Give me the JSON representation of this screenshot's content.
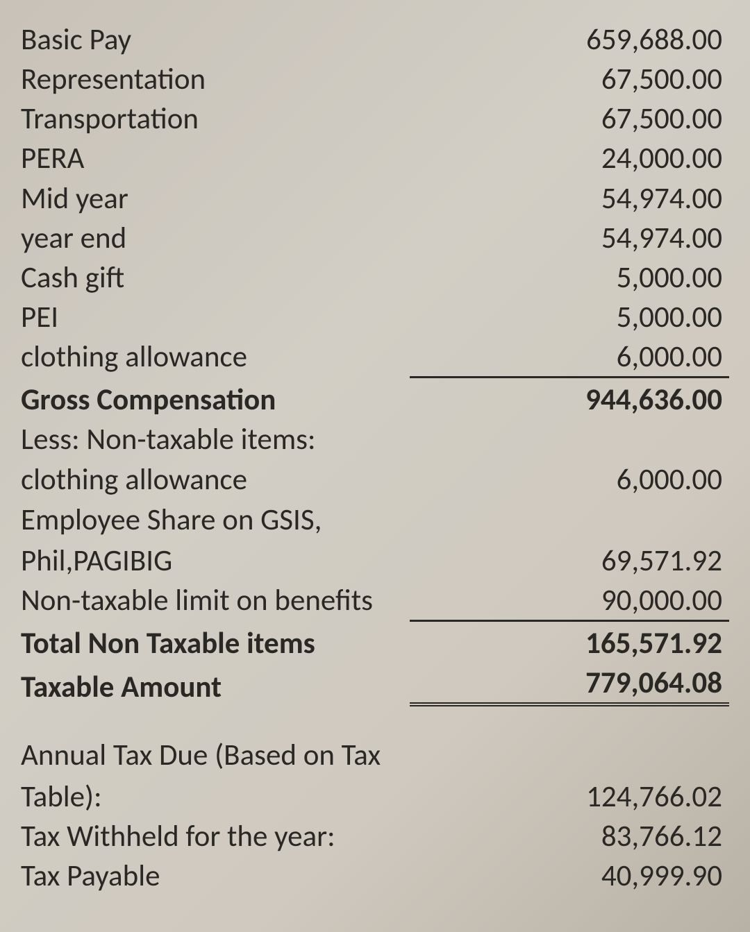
{
  "rows": {
    "basic_pay": {
      "label": "Basic Pay",
      "value": "659,688.00"
    },
    "representation": {
      "label": "Representation",
      "value": "67,500.00"
    },
    "transportation": {
      "label": "Transportation",
      "value": "67,500.00"
    },
    "pera": {
      "label": "PERA",
      "value": "24,000.00"
    },
    "mid_year": {
      "label": "Mid year",
      "value": "54,974.00"
    },
    "year_end": {
      "label": "year end",
      "value": "54,974.00"
    },
    "cash_gift": {
      "label": "Cash gift",
      "value": "5,000.00"
    },
    "pei": {
      "label": "PEI",
      "value": "5,000.00"
    },
    "clothing_allowance": {
      "label": "clothing allowance",
      "value": "6,000.00"
    },
    "gross_compensation": {
      "label": "Gross Compensation",
      "value": "944,636.00"
    },
    "less_nontax": {
      "label": "Less: Non-taxable items:"
    },
    "clothing_allowance_nt": {
      "label": "clothing allowance",
      "value": "6,000.00"
    },
    "emp_share_l1": {
      "label": "Employee Share on GSIS,"
    },
    "emp_share_l2": {
      "label": "Phil,PAGIBIG",
      "value": "69,571.92"
    },
    "nt_limit": {
      "label": "Non-taxable limit on benefits",
      "value": "90,000.00"
    },
    "total_nontax": {
      "label": "Total Non Taxable items",
      "value": "165,571.92"
    },
    "taxable_amount": {
      "label": "Taxable Amount",
      "value": "779,064.08"
    },
    "annual_tax_l1": {
      "label": "Annual Tax Due (Based on Tax"
    },
    "annual_tax_l2": {
      "label": "Table):",
      "value": "124,766.02"
    },
    "tax_withheld": {
      "label": "Tax Withheld for the year:",
      "value": "83,766.12"
    },
    "tax_payable": {
      "label": "Tax Payable",
      "value": "40,999.90"
    }
  },
  "style": {
    "font_size": 43,
    "text_color": "#2a2824",
    "background": "#cfc9bf",
    "rule_color": "#2a2824"
  }
}
